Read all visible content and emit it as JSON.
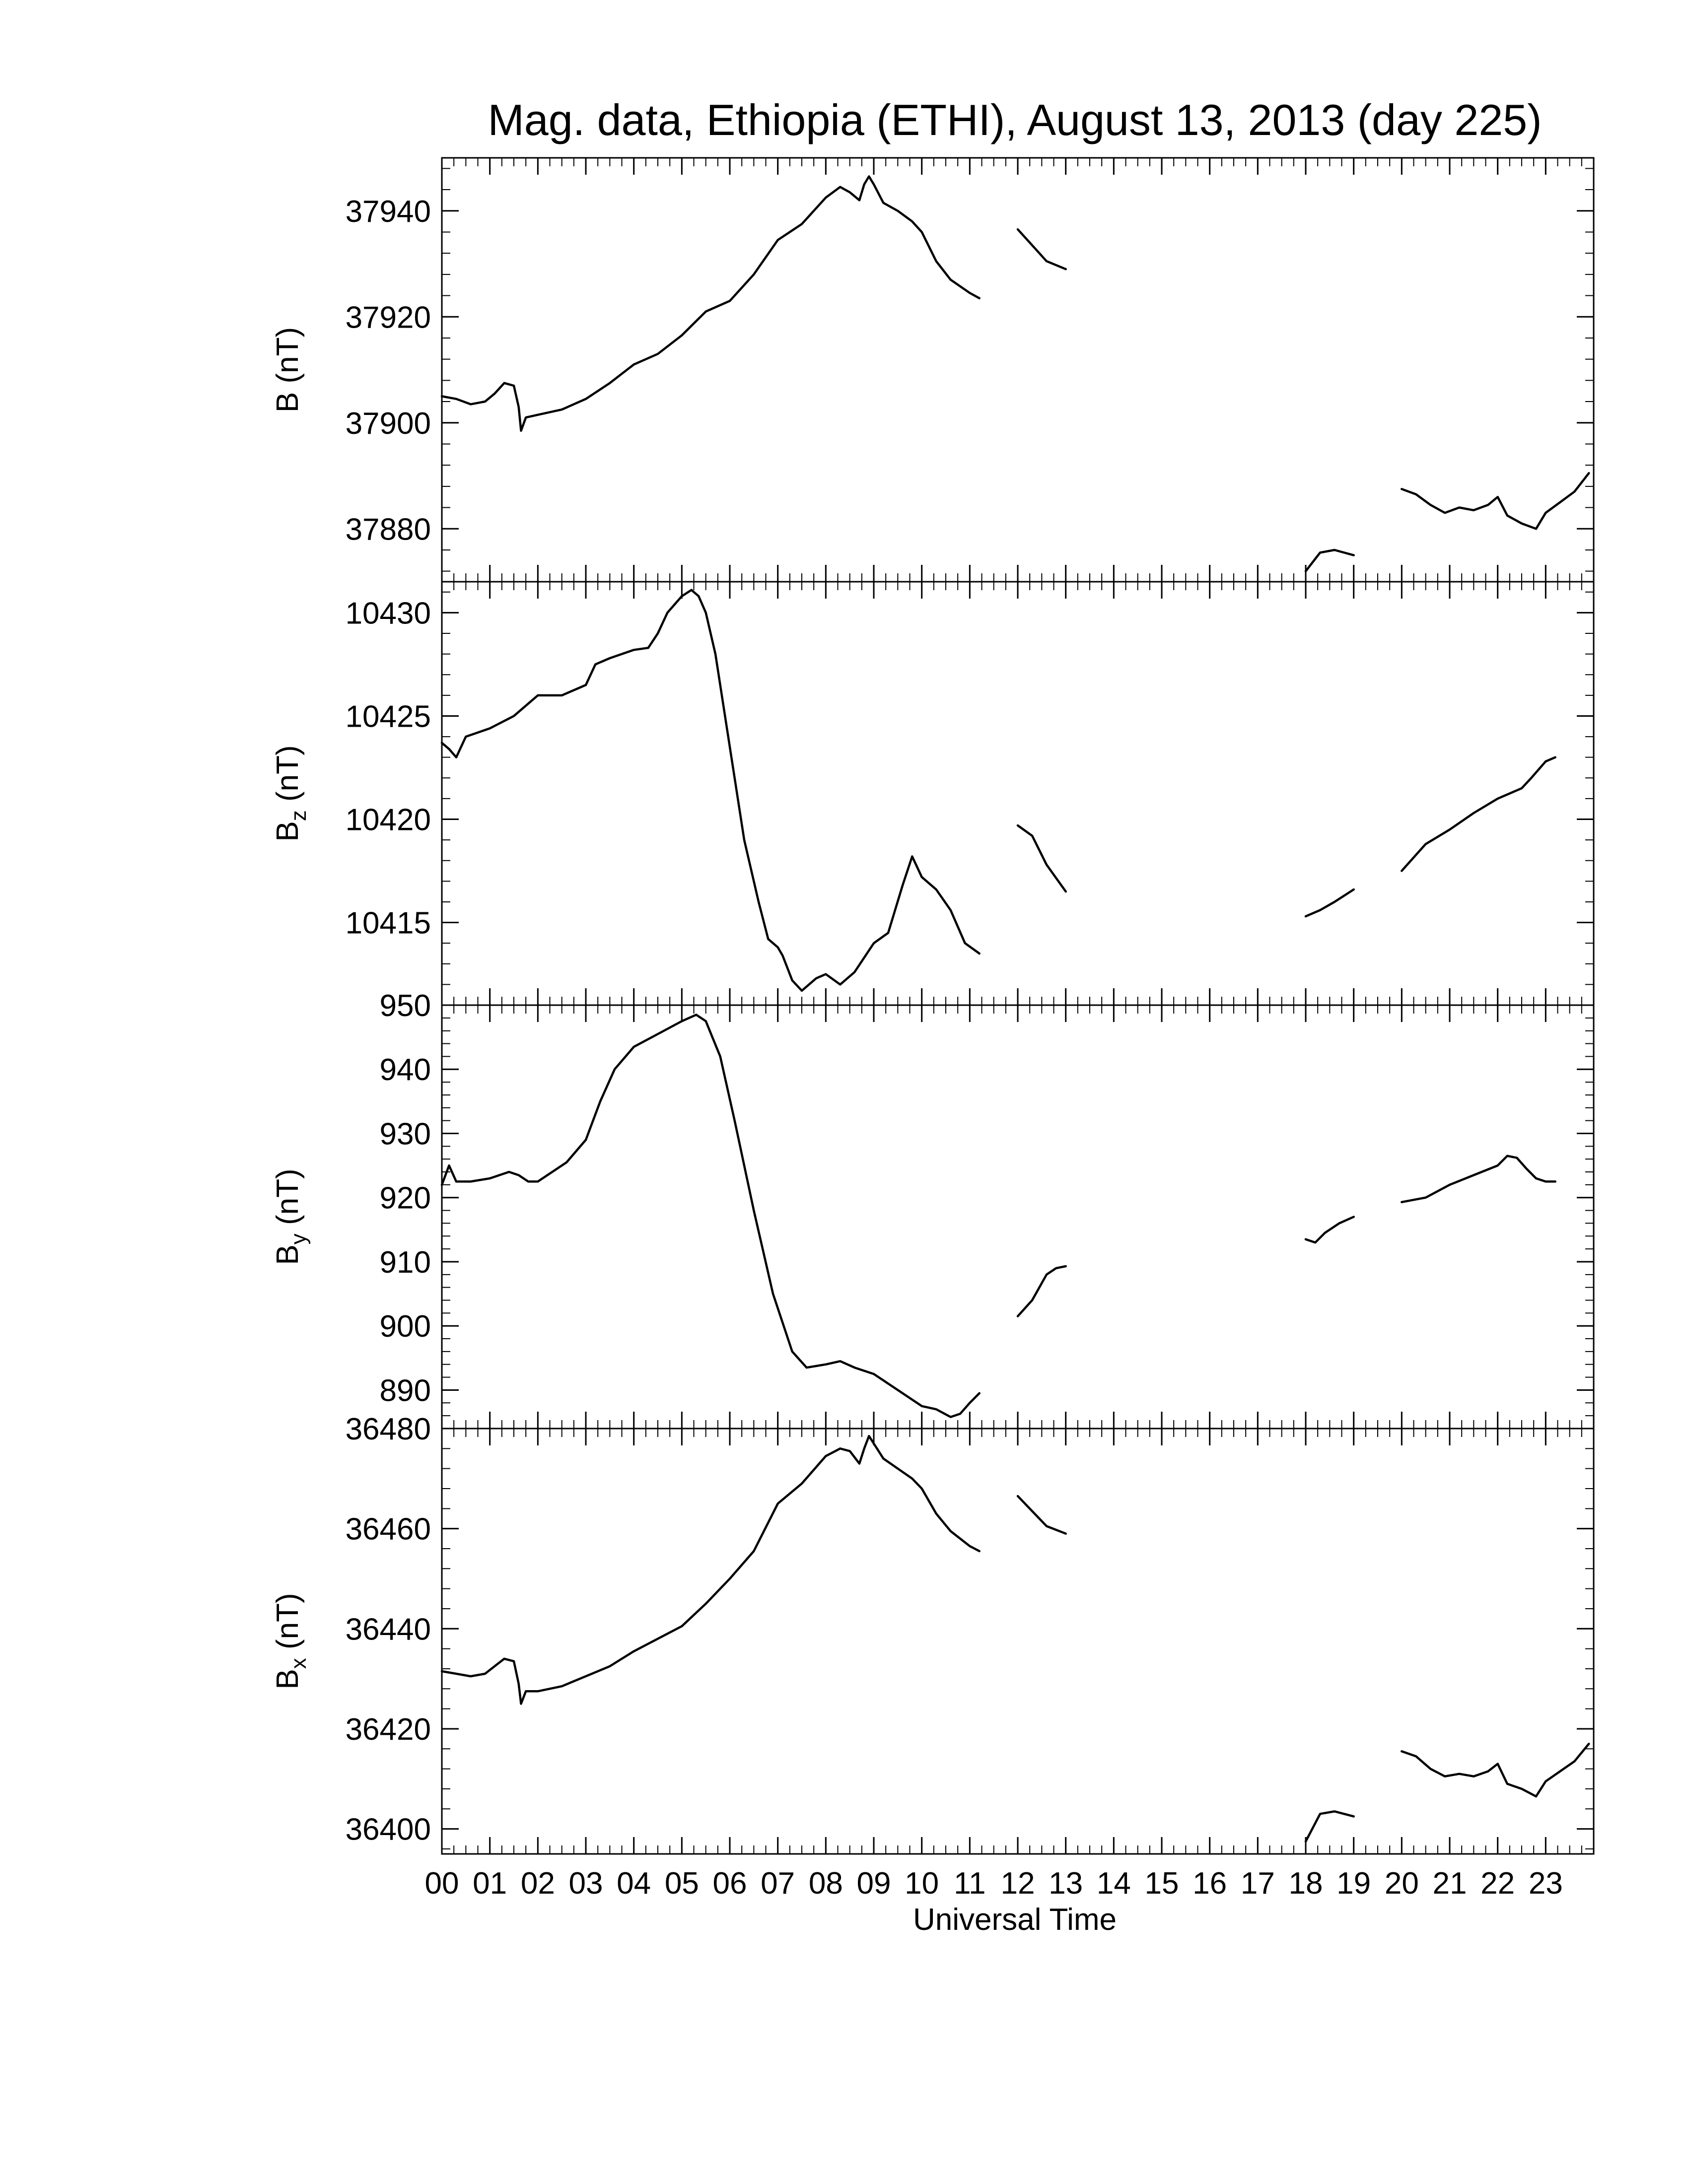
{
  "chart_data": {
    "type": "line",
    "title": "Mag. data, Ethiopia (ETHI), August 13, 2013 (day 225)",
    "xlabel": "Universal Time",
    "xlim": [
      0,
      24
    ],
    "x_tick_labels": [
      "00",
      "01",
      "02",
      "03",
      "04",
      "05",
      "06",
      "07",
      "08",
      "09",
      "10",
      "11",
      "12",
      "13",
      "14",
      "15",
      "16",
      "17",
      "18",
      "19",
      "20",
      "21",
      "22",
      "23"
    ],
    "grid": false,
    "panels": [
      {
        "id": "B",
        "ylabel_main": "B",
        "ylabel_sub": "",
        "ylabel_unit": " (nT)",
        "ylim": [
          37870,
          37950
        ],
        "yticks": [
          37880,
          37900,
          37920,
          37940
        ],
        "segments": [
          [
            [
              0,
              37905
            ],
            [
              0.3,
              37904.5
            ],
            [
              0.6,
              37903.5
            ],
            [
              0.9,
              37904
            ],
            [
              1.1,
              37905.5
            ],
            [
              1.3,
              37907.5
            ],
            [
              1.5,
              37907
            ],
            [
              1.6,
              37903
            ],
            [
              1.65,
              37898.5
            ],
            [
              1.75,
              37901
            ],
            [
              2.0,
              37901.5
            ],
            [
              2.5,
              37902.5
            ],
            [
              3.0,
              37904.5
            ],
            [
              3.5,
              37907.5
            ],
            [
              4.0,
              37911
            ],
            [
              4.5,
              37913
            ],
            [
              5.0,
              37916.5
            ],
            [
              5.5,
              37921
            ],
            [
              6.0,
              37923
            ],
            [
              6.5,
              37928
            ],
            [
              7.0,
              37934.5
            ],
            [
              7.5,
              37937.5
            ],
            [
              8.0,
              37942.5
            ],
            [
              8.3,
              37944.5
            ],
            [
              8.5,
              37943.5
            ],
            [
              8.7,
              37942
            ],
            [
              8.8,
              37945
            ],
            [
              8.9,
              37946.5
            ],
            [
              9.0,
              37945
            ],
            [
              9.2,
              37941.5
            ],
            [
              9.5,
              37940
            ],
            [
              9.8,
              37938
            ],
            [
              10.0,
              37936
            ],
            [
              10.3,
              37930.5
            ],
            [
              10.6,
              37927
            ],
            [
              11.0,
              37924.5
            ],
            [
              11.2,
              37923.5
            ]
          ],
          [
            [
              12.0,
              37936.5
            ],
            [
              12.3,
              37933.5
            ],
            [
              12.6,
              37930.5
            ],
            [
              13.0,
              37929
            ]
          ],
          [
            [
              18.0,
              37872
            ],
            [
              18.3,
              37875.5
            ],
            [
              18.6,
              37876
            ],
            [
              19.0,
              37875
            ]
          ],
          [
            [
              20.0,
              37887.5
            ],
            [
              20.3,
              37886.5
            ],
            [
              20.6,
              37884.5
            ],
            [
              20.9,
              37883
            ],
            [
              21.2,
              37884
            ],
            [
              21.5,
              37883.5
            ],
            [
              21.8,
              37884.5
            ],
            [
              22.0,
              37886
            ],
            [
              22.2,
              37882.5
            ],
            [
              22.5,
              37881
            ],
            [
              22.8,
              37880
            ],
            [
              23.0,
              37883
            ],
            [
              23.3,
              37885
            ],
            [
              23.6,
              37887
            ],
            [
              23.9,
              37890.5
            ]
          ]
        ]
      },
      {
        "id": "Bz",
        "ylabel_main": "B",
        "ylabel_sub": "z",
        "ylabel_unit": " (nT)",
        "ylim": [
          10411,
          10431.5
        ],
        "yticks": [
          10415,
          10420,
          10425,
          10430
        ],
        "segments": [
          [
            [
              0,
              10423.7
            ],
            [
              0.15,
              10423.4
            ],
            [
              0.3,
              10423
            ],
            [
              0.5,
              10424
            ],
            [
              1.0,
              10424.4
            ],
            [
              1.5,
              10425
            ],
            [
              2.0,
              10426
            ],
            [
              2.5,
              10426
            ],
            [
              3.0,
              10426.5
            ],
            [
              3.2,
              10427.5
            ],
            [
              3.5,
              10427.8
            ],
            [
              4.0,
              10428.2
            ],
            [
              4.3,
              10428.3
            ],
            [
              4.5,
              10429
            ],
            [
              4.7,
              10430
            ],
            [
              5.0,
              10430.8
            ],
            [
              5.2,
              10431.1
            ],
            [
              5.35,
              10430.8
            ],
            [
              5.5,
              10430
            ],
            [
              5.7,
              10428
            ],
            [
              6.0,
              10423.5
            ],
            [
              6.3,
              10419
            ],
            [
              6.6,
              10416
            ],
            [
              6.8,
              10414.2
            ],
            [
              7.0,
              10413.8
            ],
            [
              7.1,
              10413.4
            ],
            [
              7.3,
              10412.2
            ],
            [
              7.5,
              10411.7
            ],
            [
              7.8,
              10412.3
            ],
            [
              8.0,
              10412.5
            ],
            [
              8.3,
              10412
            ],
            [
              8.6,
              10412.6
            ],
            [
              9.0,
              10414
            ],
            [
              9.3,
              10414.5
            ],
            [
              9.6,
              10416.8
            ],
            [
              9.8,
              10418.2
            ],
            [
              10.0,
              10417.2
            ],
            [
              10.3,
              10416.6
            ],
            [
              10.6,
              10415.6
            ],
            [
              10.9,
              10414
            ],
            [
              11.2,
              10413.5
            ]
          ],
          [
            [
              12.0,
              10419.7
            ],
            [
              12.3,
              10419.2
            ],
            [
              12.6,
              10417.8
            ],
            [
              13.0,
              10416.5
            ]
          ],
          [
            [
              18.0,
              10415.3
            ],
            [
              18.3,
              10415.6
            ],
            [
              18.6,
              10416
            ],
            [
              19.0,
              10416.6
            ]
          ],
          [
            [
              20.0,
              10417.5
            ],
            [
              20.5,
              10418.8
            ],
            [
              21.0,
              10419.5
            ],
            [
              21.5,
              10420.3
            ],
            [
              22.0,
              10421
            ],
            [
              22.5,
              10421.5
            ],
            [
              22.7,
              10422
            ],
            [
              23.0,
              10422.8
            ],
            [
              23.2,
              10423
            ]
          ]
        ]
      },
      {
        "id": "By",
        "ylabel_main": "B",
        "ylabel_sub": "y",
        "ylabel_unit": " (nT)",
        "ylim": [
          884,
          950
        ],
        "yticks": [
          890,
          900,
          910,
          920,
          930,
          940,
          950
        ],
        "segments": [
          [
            [
              0,
              922
            ],
            [
              0.15,
              925
            ],
            [
              0.3,
              922.5
            ],
            [
              0.6,
              922.5
            ],
            [
              1.0,
              923
            ],
            [
              1.4,
              924
            ],
            [
              1.6,
              923.5
            ],
            [
              1.8,
              922.5
            ],
            [
              2.0,
              922.5
            ],
            [
              2.3,
              924
            ],
            [
              2.6,
              925.5
            ],
            [
              3.0,
              929
            ],
            [
              3.3,
              935
            ],
            [
              3.6,
              940
            ],
            [
              4.0,
              943.5
            ],
            [
              4.5,
              945.5
            ],
            [
              5.0,
              947.5
            ],
            [
              5.3,
              948.5
            ],
            [
              5.5,
              947.5
            ],
            [
              5.8,
              942
            ],
            [
              6.1,
              932
            ],
            [
              6.5,
              918
            ],
            [
              6.9,
              905
            ],
            [
              7.3,
              896
            ],
            [
              7.6,
              893.5
            ],
            [
              8.0,
              894
            ],
            [
              8.3,
              894.5
            ],
            [
              8.6,
              893.5
            ],
            [
              9.0,
              892.5
            ],
            [
              9.3,
              891
            ],
            [
              9.6,
              889.5
            ],
            [
              10.0,
              887.5
            ],
            [
              10.3,
              887
            ],
            [
              10.6,
              885.8
            ],
            [
              10.8,
              886.3
            ],
            [
              11.0,
              888
            ],
            [
              11.2,
              889.5
            ]
          ],
          [
            [
              12.0,
              901.5
            ],
            [
              12.3,
              904
            ],
            [
              12.6,
              908
            ],
            [
              12.8,
              909
            ],
            [
              13.0,
              909.3
            ]
          ],
          [
            [
              18.0,
              913.5
            ],
            [
              18.2,
              913
            ],
            [
              18.4,
              914.5
            ],
            [
              18.7,
              916
            ],
            [
              19.0,
              917
            ]
          ],
          [
            [
              20.0,
              919.3
            ],
            [
              20.5,
              920
            ],
            [
              21.0,
              922
            ],
            [
              21.5,
              923.5
            ],
            [
              22.0,
              925
            ],
            [
              22.2,
              926.5
            ],
            [
              22.4,
              926.2
            ],
            [
              22.6,
              924.5
            ],
            [
              22.8,
              923
            ],
            [
              23.0,
              922.5
            ],
            [
              23.2,
              922.5
            ]
          ]
        ]
      },
      {
        "id": "Bx",
        "ylabel_main": "B",
        "ylabel_sub": "x",
        "ylabel_unit": " (nT)",
        "ylim": [
          36395,
          36480
        ],
        "yticks": [
          36400,
          36420,
          36440,
          36460,
          36480
        ],
        "segments": [
          [
            [
              0,
              36431.5
            ],
            [
              0.3,
              36431
            ],
            [
              0.6,
              36430.5
            ],
            [
              0.9,
              36431
            ],
            [
              1.1,
              36432.5
            ],
            [
              1.3,
              36434
            ],
            [
              1.5,
              36433.5
            ],
            [
              1.6,
              36429
            ],
            [
              1.65,
              36425
            ],
            [
              1.75,
              36427.5
            ],
            [
              2.0,
              36427.5
            ],
            [
              2.5,
              36428.5
            ],
            [
              3.0,
              36430.5
            ],
            [
              3.5,
              36432.5
            ],
            [
              4.0,
              36435.5
            ],
            [
              4.5,
              36438
            ],
            [
              5.0,
              36440.5
            ],
            [
              5.5,
              36445
            ],
            [
              6.0,
              36450
            ],
            [
              6.5,
              36455.5
            ],
            [
              7.0,
              36465
            ],
            [
              7.5,
              36469
            ],
            [
              8.0,
              36474.5
            ],
            [
              8.3,
              36476
            ],
            [
              8.5,
              36475.5
            ],
            [
              8.7,
              36473
            ],
            [
              8.8,
              36476
            ],
            [
              8.9,
              36478.5
            ],
            [
              9.0,
              36477
            ],
            [
              9.2,
              36474
            ],
            [
              9.5,
              36472
            ],
            [
              9.8,
              36470
            ],
            [
              10.0,
              36468
            ],
            [
              10.3,
              36463
            ],
            [
              10.6,
              36459.5
            ],
            [
              11.0,
              36456.5
            ],
            [
              11.2,
              36455.5
            ]
          ],
          [
            [
              12.0,
              36466.5
            ],
            [
              12.3,
              36463.5
            ],
            [
              12.6,
              36460.5
            ],
            [
              13.0,
              36459
            ]
          ],
          [
            [
              18.0,
              36397.5
            ],
            [
              18.3,
              36403
            ],
            [
              18.6,
              36403.5
            ],
            [
              19.0,
              36402.5
            ]
          ],
          [
            [
              20.0,
              36415.5
            ],
            [
              20.3,
              36414.5
            ],
            [
              20.6,
              36412
            ],
            [
              20.9,
              36410.5
            ],
            [
              21.2,
              36411
            ],
            [
              21.5,
              36410.5
            ],
            [
              21.8,
              36411.5
            ],
            [
              22.0,
              36413
            ],
            [
              22.2,
              36409
            ],
            [
              22.5,
              36408
            ],
            [
              22.8,
              36406.5
            ],
            [
              23.0,
              36409.5
            ],
            [
              23.3,
              36411.5
            ],
            [
              23.6,
              36413.5
            ],
            [
              23.9,
              36417
            ]
          ]
        ]
      }
    ]
  }
}
